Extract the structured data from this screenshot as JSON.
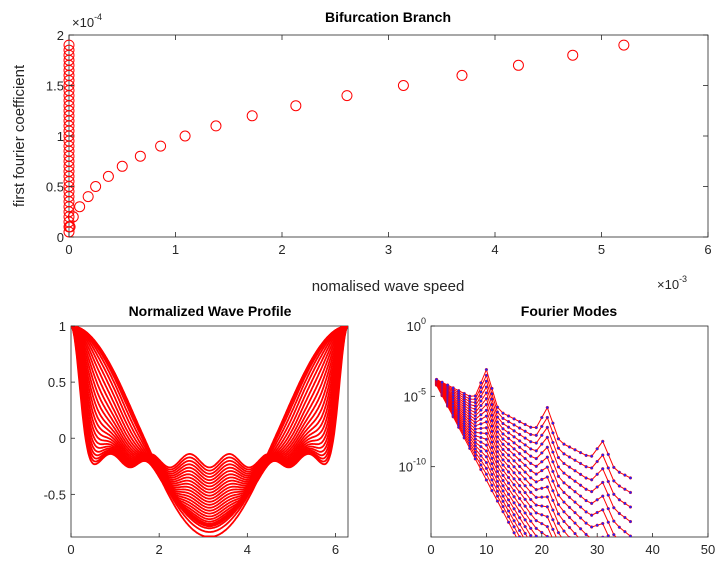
{
  "chart_data": [
    {
      "type": "scatter",
      "title": "Bifurcation Branch",
      "xlabel": "nomalised wave speed",
      "ylabel": "first fourier coefficient",
      "x_multiplier": {
        "base": "×10",
        "exp": "-3"
      },
      "y_multiplier": {
        "base": "×10",
        "exp": "-4"
      },
      "xlim": [
        0,
        6
      ],
      "ylim": [
        0,
        2
      ],
      "xticks": [
        "0",
        "1",
        "2",
        "3",
        "4",
        "5",
        "6"
      ],
      "yticks": [
        "0",
        "0.5",
        "1",
        "1.5",
        "2"
      ],
      "marker": "open-circle",
      "color": "#ff0000",
      "series": [
        {
          "points": [
            [
              0.0,
              0.05
            ],
            [
              0.0,
              0.1
            ],
            [
              0.0,
              0.15
            ],
            [
              0.0,
              0.2
            ],
            [
              0.0,
              0.25
            ],
            [
              0.0,
              0.3
            ],
            [
              0.0,
              0.35
            ],
            [
              0.0,
              0.4
            ],
            [
              0.0,
              0.45
            ],
            [
              0.0,
              0.5
            ],
            [
              0.0,
              0.55
            ],
            [
              0.0,
              0.6
            ],
            [
              0.0,
              0.65
            ],
            [
              0.0,
              0.7
            ],
            [
              0.0,
              0.75
            ],
            [
              0.0,
              0.8
            ],
            [
              0.0,
              0.85
            ],
            [
              0.0,
              0.9
            ],
            [
              0.0,
              0.95
            ],
            [
              0.0,
              1.0
            ],
            [
              0.0,
              1.05
            ],
            [
              0.0,
              1.1
            ],
            [
              0.0,
              1.15
            ],
            [
              0.0,
              1.2
            ],
            [
              0.0,
              1.25
            ],
            [
              0.0,
              1.3
            ],
            [
              0.0,
              1.35
            ],
            [
              0.0,
              1.4
            ],
            [
              0.0,
              1.45
            ],
            [
              0.0,
              1.5
            ],
            [
              0.0,
              1.55
            ],
            [
              0.0,
              1.6
            ],
            [
              0.0,
              1.65
            ],
            [
              0.0,
              1.7
            ],
            [
              0.0,
              1.75
            ],
            [
              0.0,
              1.8
            ],
            [
              0.0,
              1.85
            ],
            [
              0.0,
              1.9
            ],
            [
              0.01,
              0.1
            ],
            [
              0.04,
              0.2
            ],
            [
              0.1,
              0.3
            ],
            [
              0.18,
              0.4
            ],
            [
              0.25,
              0.5
            ],
            [
              0.37,
              0.6
            ],
            [
              0.5,
              0.7
            ],
            [
              0.67,
              0.8
            ],
            [
              0.86,
              0.9
            ],
            [
              1.09,
              1.0
            ],
            [
              1.38,
              1.1
            ],
            [
              1.72,
              1.2
            ],
            [
              2.13,
              1.3
            ],
            [
              2.61,
              1.4
            ],
            [
              3.14,
              1.5
            ],
            [
              3.69,
              1.6
            ],
            [
              4.22,
              1.7
            ],
            [
              4.73,
              1.8
            ],
            [
              5.21,
              1.9
            ]
          ]
        }
      ]
    },
    {
      "type": "line",
      "title": "Normalized Wave Profile",
      "xlabel": "",
      "ylabel": "",
      "xlim": [
        0,
        6.2832
      ],
      "ylim": [
        -0.88,
        1
      ],
      "xticks": [
        "0",
        "2",
        "4",
        "6"
      ],
      "yticks": [
        "-0.5",
        "0",
        "0.5",
        "1"
      ],
      "color": "#ff0000",
      "series_description_model": {
        "count": 25,
        "form": "normalized periodic wave profiles from sinusoid (min -0.88 at pi) to sharp-cornered profile (min -0.2)",
        "minimum_range": [
          -0.88,
          -0.2
        ]
      }
    },
    {
      "type": "line",
      "title": "Fourier Modes",
      "xlabel": "",
      "ylabel": "",
      "xlim": [
        0,
        50
      ],
      "ylim_log10": [
        -15,
        0
      ],
      "xticks": [
        "0",
        "10",
        "20",
        "30",
        "40",
        "50"
      ],
      "yticks": [
        {
          "base": "10",
          "exp": "0"
        },
        {
          "base": "10",
          "exp": "-5"
        },
        {
          "base": "10",
          "exp": "-10"
        }
      ],
      "yscale": "log",
      "color": "#ff0000",
      "marker_color": "#1f1fff",
      "series_description_model": {
        "count": 20,
        "start_log10_range": [
          -3.8,
          -4.2
        ],
        "form": "decaying Fourier amplitude spectra with peaks near modes 10, 21, 31"
      }
    }
  ]
}
